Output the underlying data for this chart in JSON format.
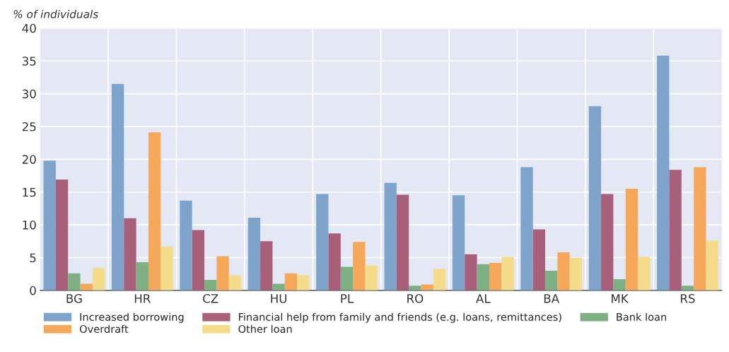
{
  "chart_data": {
    "type": "bar",
    "ylabel": "% of individuals",
    "categories": [
      "BG",
      "HR",
      "CZ",
      "HU",
      "PL",
      "RO",
      "AL",
      "BA",
      "MK",
      "RS"
    ],
    "series": [
      {
        "name": "Increased borrowing",
        "color": "#7fa4cc",
        "values": [
          19.8,
          31.5,
          13.7,
          11.1,
          14.7,
          16.4,
          14.5,
          18.8,
          28.1,
          35.8
        ]
      },
      {
        "name": "Financial help from family and friends (e.g. loans, remittances)",
        "color": "#a8607a",
        "values": [
          16.9,
          11.0,
          9.2,
          7.5,
          8.7,
          14.6,
          5.5,
          9.3,
          14.7,
          18.4
        ]
      },
      {
        "name": "Bank loan",
        "color": "#7eb083",
        "values": [
          2.6,
          4.3,
          1.6,
          1.0,
          3.6,
          0.7,
          4.0,
          3.0,
          1.7,
          0.7
        ]
      },
      {
        "name": "Overdraft",
        "color": "#f5a85a",
        "values": [
          1.0,
          24.1,
          5.2,
          2.6,
          7.4,
          0.9,
          4.2,
          5.8,
          15.5,
          18.8
        ]
      },
      {
        "name": "Other loan",
        "color": "#f5dc8a",
        "values": [
          3.4,
          6.7,
          2.3,
          2.3,
          3.8,
          3.3,
          5.1,
          5.0,
          5.1,
          7.6
        ]
      }
    ],
    "ylim": [
      0,
      40
    ],
    "yticks": [
      0,
      5,
      10,
      15,
      20,
      25,
      30,
      35,
      40
    ],
    "grid": true,
    "legend": "bottom"
  }
}
